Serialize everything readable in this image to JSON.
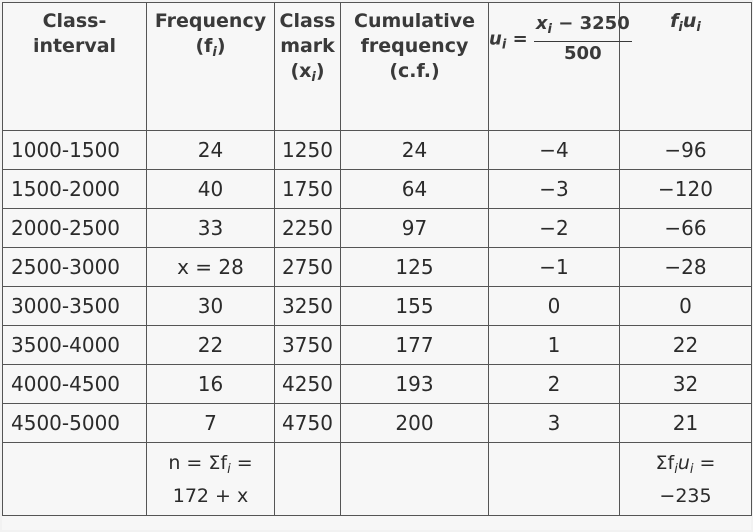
{
  "table": {
    "headers": {
      "class_interval": [
        "Class-",
        "interval"
      ],
      "frequency": [
        "Frequency",
        "(f",
        "i",
        ")"
      ],
      "class_mark": [
        "Class",
        "mark",
        "(x",
        "i",
        ")"
      ],
      "cumulative": [
        "Cumulative",
        "frequency",
        "(c.f.)"
      ],
      "ui": {
        "lhs": "u",
        "lhs_sub": "i",
        "eq": " = ",
        "num_a": "x",
        "num_sub": "i",
        "num_b": " − 3250",
        "den": "500"
      },
      "fiui": {
        "f": "f",
        "f_sub": "i",
        "u": "u",
        "u_sub": "i"
      }
    },
    "rows": [
      {
        "interval": "1000-1500",
        "f": "24",
        "x": "1250",
        "cf": "24",
        "u": "−4",
        "fu": "−96"
      },
      {
        "interval": "1500-2000",
        "f": "40",
        "x": "1750",
        "cf": "64",
        "u": "−3",
        "fu": "−120"
      },
      {
        "interval": "2000-2500",
        "f": "33",
        "x": "2250",
        "cf": "97",
        "u": "−2",
        "fu": "−66"
      },
      {
        "interval": "2500-3000",
        "f": "x = 28",
        "x": "2750",
        "cf": "125",
        "u": "−1",
        "fu": "−28"
      },
      {
        "interval": "3000-3500",
        "f": "30",
        "x": "3250",
        "cf": "155",
        "u": "0",
        "fu": "0"
      },
      {
        "interval": "3500-4000",
        "f": "22",
        "x": "3750",
        "cf": "177",
        "u": "1",
        "fu": "22"
      },
      {
        "interval": "4000-4500",
        "f": "16",
        "x": "4250",
        "cf": "193",
        "u": "2",
        "fu": "32"
      },
      {
        "interval": "4500-5000",
        "f": "7",
        "x": "4750",
        "cf": "200",
        "u": "3",
        "fu": "21"
      }
    ],
    "totals": {
      "n_line1_a": "n = Σf",
      "n_line1_sub": "i",
      "n_line1_b": " =",
      "n_line2": "172 + x",
      "fu_line1_a": "Σf",
      "fu_line1_sub1": "i",
      "fu_line1_b": "u",
      "fu_line1_sub2": "i",
      "fu_line1_c": " =",
      "fu_line2": "−235"
    }
  }
}
